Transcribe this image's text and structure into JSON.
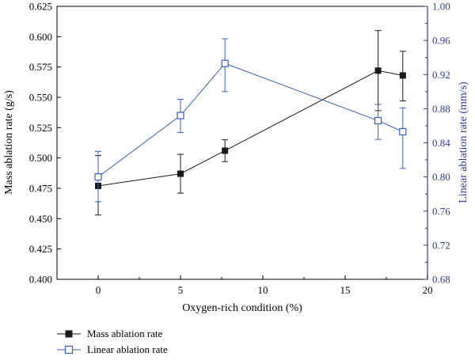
{
  "chart_data": {
    "type": "line",
    "xlabel": "Oxygen-rich condition (%)",
    "ylabel_left": "Mass ablation rate (g/s)",
    "ylabel_right": "Linear ablation rate (mm/s)",
    "xlim": [
      -2.5,
      20
    ],
    "ylim_left": [
      0.4,
      0.625
    ],
    "ylim_right": [
      0.68,
      1.0
    ],
    "x_ticks": [
      0,
      5,
      10,
      15,
      20
    ],
    "x_tick_labels": [
      "0",
      "5",
      "10",
      "15",
      "20"
    ],
    "y_left_ticks": [
      0.4,
      0.425,
      0.45,
      0.475,
      0.5,
      0.525,
      0.55,
      0.575,
      0.6,
      0.625
    ],
    "y_left_tick_labels": [
      "0.400",
      "0.425",
      "0.450",
      "0.475",
      "0.500",
      "0.525",
      "0.550",
      "0.575",
      "0.600",
      "0.625"
    ],
    "y_right_ticks": [
      0.68,
      0.72,
      0.76,
      0.8,
      0.84,
      0.88,
      0.92,
      0.96,
      1.0
    ],
    "y_right_tick_labels": [
      "0.68",
      "0.72",
      "0.76",
      "0.80",
      "0.84",
      "0.88",
      "0.92",
      "0.96",
      "1.00"
    ],
    "grid": false,
    "legend_position": "bottom-left, below plot",
    "series": [
      {
        "name": "Mass ablation rate",
        "axis": "left",
        "color": "#1a1a1a",
        "marker": "filled-square",
        "x": [
          0,
          5,
          7.7,
          17,
          18.5
        ],
        "y": [
          0.477,
          0.487,
          0.506,
          0.572,
          0.568
        ],
        "err_low": [
          0.453,
          0.471,
          0.497,
          0.539,
          0.547
        ],
        "err_high": [
          0.502,
          0.503,
          0.515,
          0.605,
          0.588
        ]
      },
      {
        "name": "Linear ablation rate",
        "axis": "right",
        "color": "#3a5fb8",
        "marker": "open-square",
        "x": [
          0,
          5,
          7.7,
          17,
          18.5
        ],
        "y": [
          0.8,
          0.872,
          0.933,
          0.866,
          0.853
        ],
        "err_low": [
          0.771,
          0.852,
          0.9,
          0.844,
          0.81
        ],
        "err_high": [
          0.83,
          0.891,
          0.962,
          0.885,
          0.881
        ]
      }
    ],
    "colors": {
      "left_axis": "#000000",
      "right_axis": "#2a3d9a",
      "mass_series": "#1a1a1a",
      "linear_series": "#3a5fb8"
    }
  }
}
